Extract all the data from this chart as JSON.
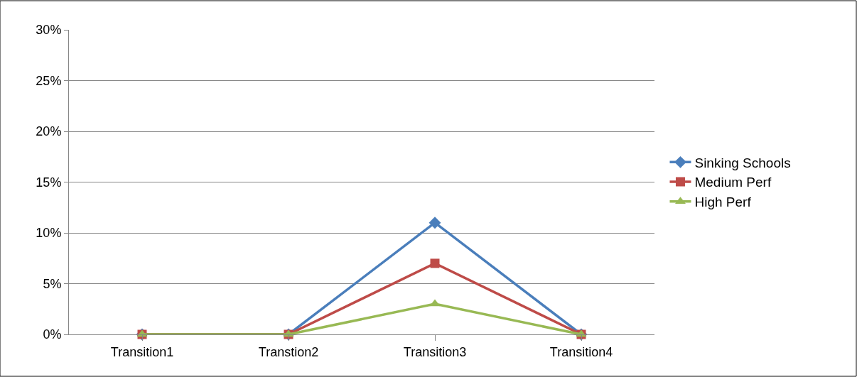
{
  "chart_data": {
    "type": "line",
    "categories": [
      "Transition1",
      "Transtion2",
      "Transition3",
      "Transition4"
    ],
    "series": [
      {
        "name": "Sinking Schools",
        "color": "#4a7ebb",
        "marker": "diamond",
        "values": [
          0,
          0,
          11,
          0
        ]
      },
      {
        "name": "Medium Perf",
        "color": "#be4b48",
        "marker": "square",
        "values": [
          0,
          0,
          7,
          0
        ]
      },
      {
        "name": "High Perf",
        "color": "#98b954",
        "marker": "triangle",
        "values": [
          0,
          0,
          3,
          0
        ]
      }
    ],
    "ylim": [
      0,
      30
    ],
    "yticks": [
      {
        "value": 0,
        "label": "0%"
      },
      {
        "value": 5,
        "label": "5%"
      },
      {
        "value": 10,
        "label": "10%"
      },
      {
        "value": 15,
        "label": "15%"
      },
      {
        "value": 20,
        "label": "20%"
      },
      {
        "value": 25,
        "label": "25%"
      },
      {
        "value": 30,
        "label": "30%"
      }
    ],
    "grid": "y",
    "legend": "right",
    "line_style": "solid"
  }
}
